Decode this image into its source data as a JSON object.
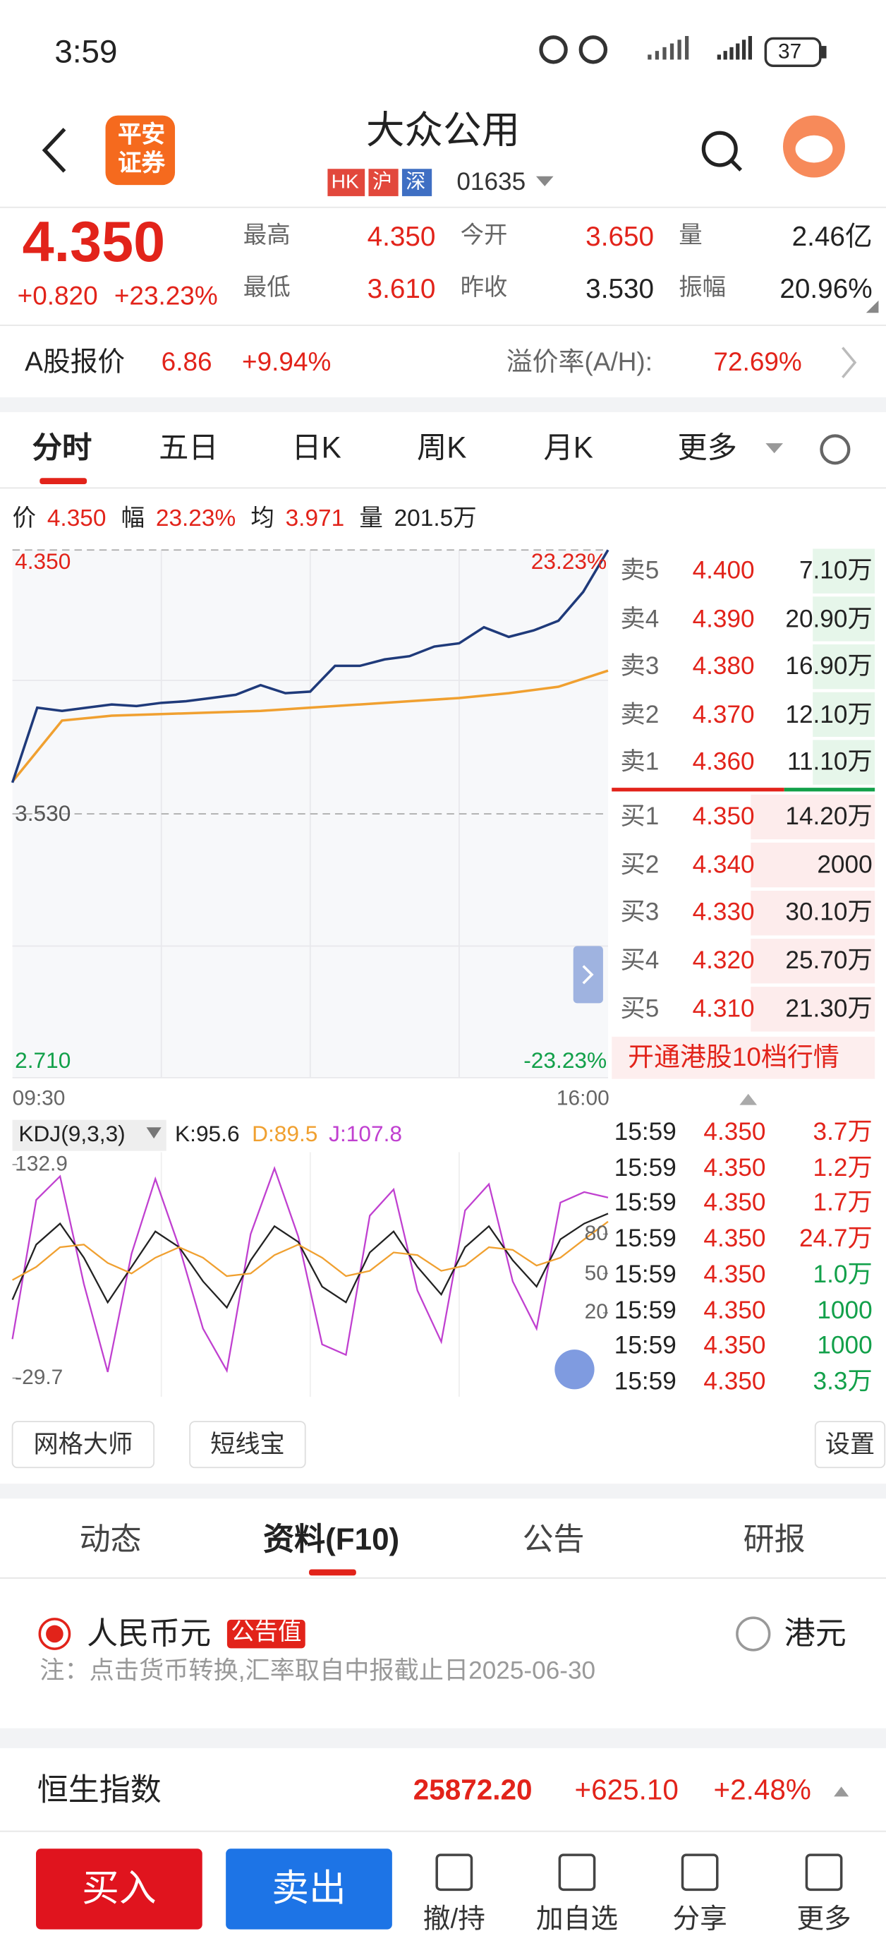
{
  "status": {
    "time": "3:59",
    "battery": "37"
  },
  "header": {
    "logo": [
      "平安",
      "证券"
    ],
    "title": "大众公用",
    "tags": [
      "HK",
      "沪",
      "深"
    ],
    "code": "01635"
  },
  "quote": {
    "price": "4.350",
    "change": "+0.820",
    "pct": "+23.23%",
    "stats": [
      {
        "label": "最高",
        "value": "4.350",
        "color": "#e2231a"
      },
      {
        "label": "今开",
        "value": "3.650",
        "color": "#e2231a"
      },
      {
        "label": "量",
        "value": "2.46亿",
        "color": "#222"
      },
      {
        "label": "最低",
        "value": "3.610",
        "color": "#e2231a"
      },
      {
        "label": "昨收",
        "value": "3.530",
        "color": "#222"
      },
      {
        "label": "振幅",
        "value": "20.96%",
        "color": "#222"
      }
    ]
  },
  "a_share": {
    "label": "A股报价",
    "price": "6.86",
    "pct": "+9.94%",
    "premium_label": "溢价率(A/H):",
    "premium": "72.69%"
  },
  "tabs": [
    "分时",
    "五日",
    "日K",
    "周K",
    "月K",
    "更多"
  ],
  "info_bar": [
    {
      "label": "价",
      "value": "4.350"
    },
    {
      "label": "幅",
      "value": "23.23%"
    },
    {
      "label": "均",
      "value": "3.971"
    },
    {
      "label": "量",
      "value": "201.5万"
    }
  ],
  "intraday": {
    "ylim": [
      2.71,
      4.35
    ],
    "yticks": [
      {
        "value": 4.35,
        "label": "4.350"
      },
      {
        "value": 3.53,
        "label": "3.530"
      },
      {
        "value": 2.71,
        "label": "2.710"
      }
    ],
    "pct_labels": [
      "23.23%",
      "-23.23%"
    ],
    "x_labels": [
      "09:30",
      "16:00"
    ],
    "price": {
      "color": "#1f3a7a",
      "values": [
        3.627,
        3.86,
        3.85,
        3.86,
        3.87,
        3.865,
        3.875,
        3.88,
        3.89,
        3.9,
        3.93,
        3.905,
        3.91,
        3.99,
        3.99,
        4.01,
        4.02,
        4.05,
        4.06,
        4.11,
        4.08,
        4.1,
        4.13,
        4.22,
        4.35
      ]
    },
    "avg": {
      "color": "#f0a030",
      "values": [
        3.63,
        3.82,
        3.835,
        3.84,
        3.845,
        3.85,
        3.86,
        3.87,
        3.88,
        3.89,
        3.905,
        3.925,
        3.975
      ]
    }
  },
  "order_book": {
    "asks": [
      {
        "label": "卖5",
        "price": "4.400",
        "volume": "7.10万"
      },
      {
        "label": "卖4",
        "price": "4.390",
        "volume": "20.90万"
      },
      {
        "label": "卖3",
        "price": "4.380",
        "volume": "16.90万"
      },
      {
        "label": "卖2",
        "price": "4.370",
        "volume": "12.10万"
      },
      {
        "label": "卖1",
        "price": "4.360",
        "volume": "11.10万"
      }
    ],
    "bids": [
      {
        "label": "买1",
        "price": "4.350",
        "volume": "14.20万"
      },
      {
        "label": "买2",
        "price": "4.340",
        "volume": "2000"
      },
      {
        "label": "买3",
        "price": "4.330",
        "volume": "30.10万"
      },
      {
        "label": "买4",
        "price": "4.320",
        "volume": "25.70万"
      },
      {
        "label": "买5",
        "price": "4.310",
        "volume": "21.30万"
      }
    ],
    "link": "开通港股10档行情"
  },
  "kdj": {
    "label": "KDJ(9,3,3)",
    "k_label": "K:95.6",
    "d_label": "D:89.5",
    "j_label": "J:107.8",
    "ylim": [
      -29.7,
      132.9
    ],
    "left_ticks": [
      132.9,
      -29.7
    ],
    "right_ticks": [
      80,
      50,
      20
    ],
    "series": [
      {
        "name": "K",
        "color": "#222222",
        "values": [
          30,
          72,
          88,
          62,
          28,
          55,
          82,
          70,
          44,
          24,
          60,
          86,
          74,
          40,
          28,
          66,
          82,
          55,
          34,
          70,
          86,
          60,
          40,
          76,
          88,
          95.6
        ]
      },
      {
        "name": "D",
        "color": "#f0a030",
        "values": [
          45,
          55,
          70,
          72,
          58,
          50,
          62,
          70,
          62,
          48,
          50,
          64,
          72,
          62,
          48,
          52,
          66,
          64,
          52,
          56,
          70,
          68,
          56,
          62,
          76,
          89.5
        ]
      },
      {
        "name": "J",
        "color": "#c040d0",
        "values": [
          0,
          106,
          124,
          42,
          -25,
          65,
          122,
          70,
          8,
          -24,
          80,
          130,
          78,
          -4,
          -12,
          94,
          114,
          37,
          -2,
          98,
          118,
          44,
          8,
          104,
          112,
          107.8
        ]
      }
    ]
  },
  "trades": [
    {
      "time": "15:59",
      "price": "4.350",
      "volume": "3.7万",
      "color": "#e2231a"
    },
    {
      "time": "15:59",
      "price": "4.350",
      "volume": "1.2万",
      "color": "#e2231a"
    },
    {
      "time": "15:59",
      "price": "4.350",
      "volume": "1.7万",
      "color": "#e2231a"
    },
    {
      "time": "15:59",
      "price": "4.350",
      "volume": "24.7万",
      "color": "#e2231a"
    },
    {
      "time": "15:59",
      "price": "4.350",
      "volume": "1.0万",
      "color": "#12a04a"
    },
    {
      "time": "15:59",
      "price": "4.350",
      "volume": "1000",
      "color": "#12a04a"
    },
    {
      "time": "15:59",
      "price": "4.350",
      "volume": "1000",
      "color": "#12a04a"
    },
    {
      "time": "15:59",
      "price": "4.350",
      "volume": "3.3万",
      "color": "#12a04a"
    }
  ],
  "tools": [
    "网格大师",
    "短线宝",
    "设置"
  ],
  "section_tabs": [
    "动态",
    "资料(F10)",
    "公告",
    "研报"
  ],
  "currency": {
    "selected": "人民币元",
    "badge": "公告值",
    "other": "港元",
    "note": "注：点击货币转换,汇率取自中报截止日2025-06-30"
  },
  "index": {
    "name": "恒生指数",
    "value": "25872.20",
    "change": "+625.10",
    "pct": "+2.48%"
  },
  "bottom": {
    "buy": "买入",
    "sell": "卖出",
    "actions": [
      "撤/持",
      "加自选",
      "分享",
      "更多"
    ]
  }
}
